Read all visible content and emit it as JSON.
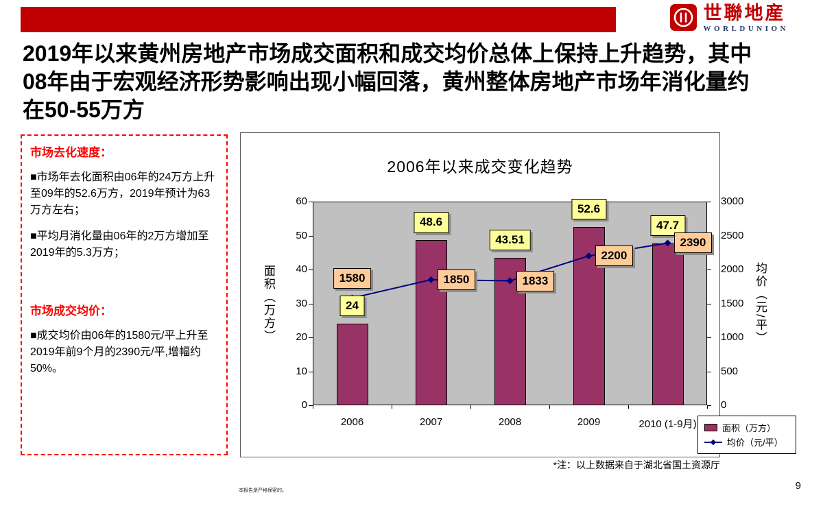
{
  "logo": {
    "cn": "世聯地産",
    "en": "WORLDUNION"
  },
  "headline": {
    "line1": "2019年以来黄州房地产市场成交面积和成交均价总体上保持上升趋势，其中",
    "line2": "08年由于宏观经济形势影响出现小幅回落，黄州整体房地产市场年消化量约",
    "line3": "在50-55万方"
  },
  "sidebar": {
    "section1_title": "市场去化速度：",
    "section1_items": [
      "■市场年去化面积由06年的24万方上升至09年的52.6万方，2019年预计为63万方左右；",
      "■平均月消化量由06年的2万方增加至2019年的5.3万方；"
    ],
    "section2_title": "市场成交均价：",
    "section2_items": [
      "■成交均价由06年的1580元/平上升至2019年前9个月的2390元/平,增幅约50%。"
    ]
  },
  "chart_data": {
    "type": "bar",
    "title": "2006年以来成交变化趋势",
    "categories": [
      "2006",
      "2007",
      "2008",
      "2009",
      "2010 (1-9月)"
    ],
    "series": [
      {
        "name": "面积（万方）",
        "kind": "bar",
        "axis": "left",
        "color": "#993366",
        "values": [
          24,
          48.6,
          43.51,
          52.6,
          47.7
        ]
      },
      {
        "name": "均价（元/平）",
        "kind": "line",
        "axis": "right",
        "color": "#000080",
        "values": [
          1580,
          1850,
          1833,
          2200,
          2390
        ]
      }
    ],
    "left_axis": {
      "label": "面积（万方）",
      "min": 0,
      "max": 60,
      "ticks": [
        0,
        10,
        20,
        30,
        40,
        50,
        60
      ]
    },
    "right_axis": {
      "label": "均价（元/平）",
      "min": 0,
      "max": 3000,
      "ticks": [
        0,
        500,
        1000,
        1500,
        2000,
        2500,
        3000
      ]
    },
    "legend_position": "bottom-right",
    "plot_background": "#c0c0c0",
    "bar_label_bg": "#ffff99",
    "line_label_bg": "#ffcc99",
    "grid": false
  },
  "footnote": "*注：以上数据来自于湖北省国土资源厅",
  "footer_note": "本报告是严格保密的。",
  "page_number": "9"
}
